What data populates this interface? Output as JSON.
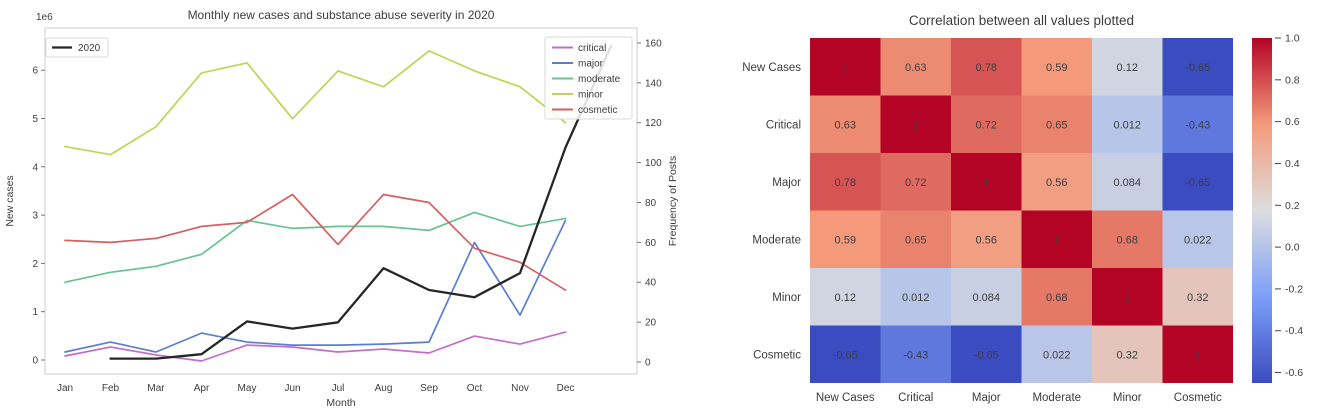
{
  "background": "#ffffff",
  "chart_data": [
    {
      "type": "line",
      "title": "Monthly new cases and substance abuse severity in 2020",
      "xlabel": "Month",
      "ylabel_left": "New cases",
      "ylabel_left_multiplier": "1e6",
      "ylabel_right": "Frequency of Posts",
      "categories": [
        "Jan",
        "Feb",
        "Mar",
        "Apr",
        "May",
        "Jun",
        "Jul",
        "Aug",
        "Sep",
        "Oct",
        "Nov",
        "Dec"
      ],
      "y_left_ticks": [
        "0",
        "1",
        "2",
        "3",
        "4",
        "5",
        "6"
      ],
      "y_right_ticks": [
        "0",
        "20",
        "40",
        "60",
        "80",
        "100",
        "120",
        "140",
        "160"
      ],
      "ylim_left": [
        -0.29,
        6.87
      ],
      "ylim_right": [
        -6,
        167.5
      ],
      "grid": false,
      "legend_left": [
        "2020"
      ],
      "legend_right": [
        "critical",
        "major",
        "moderate",
        "minor",
        "cosmetic"
      ],
      "series": [
        {
          "name": "critical",
          "axis": "right",
          "color": "#c46ec8",
          "linewidth": 1.7,
          "values": [
            3,
            7.5,
            3.5,
            0.5,
            8.5,
            7.5,
            5,
            6.5,
            4.5,
            13,
            9,
            15
          ]
        },
        {
          "name": "major",
          "axis": "right",
          "color": "#5b7fd0",
          "linewidth": 1.7,
          "values": [
            5,
            10,
            5,
            14.5,
            10,
            8.5,
            8.5,
            9,
            10,
            60,
            23.5,
            71
          ]
        },
        {
          "name": "moderate",
          "axis": "right",
          "color": "#66c490",
          "linewidth": 1.7,
          "values": [
            40,
            45,
            48,
            54,
            71,
            67,
            68,
            68,
            66,
            75,
            68,
            72
          ]
        },
        {
          "name": "minor",
          "axis": "right",
          "color": "#c3d154",
          "linewidth": 1.7,
          "values": [
            108,
            104,
            118,
            145,
            150,
            122,
            146,
            138,
            156,
            146,
            138,
            120
          ]
        },
        {
          "name": "cosmetic",
          "axis": "right",
          "color": "#d65f5f",
          "linewidth": 1.7,
          "values": [
            61,
            60,
            62,
            68,
            70,
            84,
            59,
            84,
            80,
            57,
            50,
            36
          ]
        },
        {
          "name": "2020",
          "axis": "left",
          "color": "#262626",
          "linewidth": 2.3,
          "x_offset": 1,
          "values": [
            0.03,
            0.03,
            0.12,
            0.8,
            0.65,
            0.78,
            1.9,
            1.45,
            1.3,
            1.8,
            4.4,
            6.5
          ]
        }
      ]
    },
    {
      "type": "heatmap",
      "title": "Correlation between all values plotted",
      "labels": [
        "New Cases",
        "Critical",
        "Major",
        "Moderate",
        "Minor",
        "Cosmetic"
      ],
      "matrix": [
        [
          1,
          0.63,
          0.78,
          0.59,
          0.12,
          -0.65
        ],
        [
          0.63,
          1,
          0.72,
          0.65,
          0.012,
          -0.43
        ],
        [
          0.78,
          0.72,
          1,
          0.56,
          0.084,
          -0.65
        ],
        [
          0.59,
          0.65,
          0.56,
          1,
          0.68,
          0.022
        ],
        [
          0.12,
          0.012,
          0.084,
          0.68,
          1,
          0.32
        ],
        [
          -0.65,
          -0.43,
          -0.65,
          0.022,
          0.32,
          1
        ]
      ],
      "cell_text": [
        [
          "1",
          "0.63",
          "0.78",
          "0.59",
          "0.12",
          "-0.65"
        ],
        [
          "0.63",
          "1",
          "0.72",
          "0.65",
          "0.012",
          "-0.43"
        ],
        [
          "0.78",
          "0.72",
          "1",
          "0.56",
          "0.084",
          "-0.65"
        ],
        [
          "0.59",
          "0.65",
          "0.56",
          "1",
          "0.68",
          "0.022"
        ],
        [
          "0.12",
          "0.012",
          "0.084",
          "0.68",
          "1",
          "0.32"
        ],
        [
          "-0.65",
          "-0.43",
          "-0.65",
          "0.022",
          "0.32",
          "1"
        ]
      ],
      "colormap": "coolwarm",
      "vmin": -0.65,
      "vmax": 1.0,
      "colorbar_ticks": [
        "1.0",
        "0.8",
        "0.6",
        "0.4",
        "0.2",
        "0.0",
        "-0.2",
        "-0.4",
        "-0.6"
      ],
      "legend_position": "right-colorbar"
    }
  ]
}
